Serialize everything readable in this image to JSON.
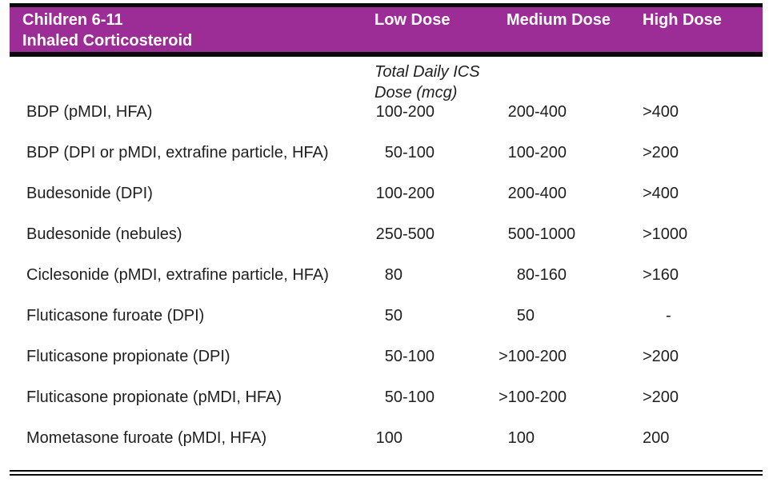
{
  "header": {
    "title_line1": "Children 6-11",
    "title_line2": "Inhaled Corticosteroid",
    "columns": [
      "Low Dose",
      "Medium Dose",
      "High Dose"
    ]
  },
  "subheader": {
    "line1": "Total Daily ICS",
    "line2": "Dose (mcg)"
  },
  "colors": {
    "header_bg": "#9c2d96",
    "header_text": "#ffffff",
    "body_text": "#1f1f1f",
    "rule": "#0a0a0a"
  },
  "rows": [
    {
      "drug": "BDP (pMDI, HFA)",
      "low": "100-200",
      "medium": "200-400",
      "high": ">400"
    },
    {
      "drug": "BDP (DPI or pMDI, extrafine particle, HFA)",
      "low": "50-100",
      "medium": "100-200",
      "high": ">200"
    },
    {
      "drug": "Budesonide (DPI)",
      "low": "100-200",
      "medium": "200-400",
      "high": ">400"
    },
    {
      "drug": "Budesonide (nebules)",
      "low": "250-500",
      "medium": "500-1000",
      "high": ">1000"
    },
    {
      "drug": "Ciclesonide (pMDI, extrafine particle, HFA)",
      "low": "80",
      "medium": "80-160",
      "high": ">160"
    },
    {
      "drug": "Fluticasone furoate (DPI)",
      "low": "50",
      "medium": "50",
      "high": "-"
    },
    {
      "drug": "Fluticasone propionate (DPI)",
      "low": "50-100",
      "medium": ">100-200",
      "high": ">200"
    },
    {
      "drug": "Fluticasone propionate (pMDI, HFA)",
      "low": "50-100",
      "medium": ">100-200",
      "high": ">200"
    },
    {
      "drug": "Mometasone furoate (pMDI, HFA)",
      "low": "100",
      "medium": "100",
      "high": "200"
    }
  ]
}
